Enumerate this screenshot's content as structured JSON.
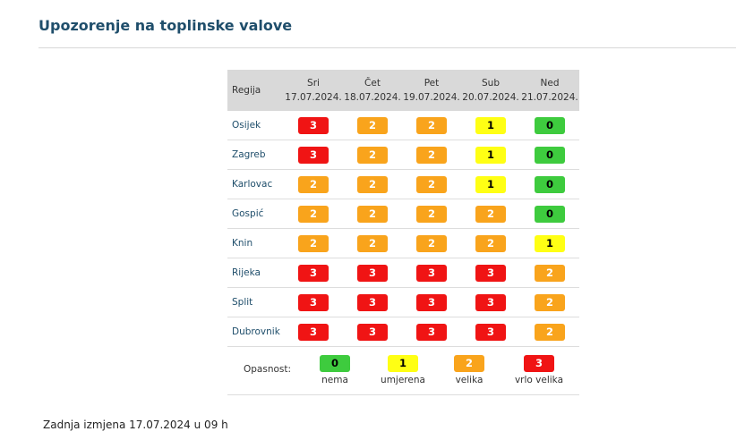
{
  "page": {
    "title": "Upozorenje na toplinske valove",
    "footer": "Zadnja izmjena 17.07.2024 u 09 h"
  },
  "table": {
    "region_header": "Regija",
    "days": [
      {
        "name": "Sri",
        "date": "17.07.2024."
      },
      {
        "name": "Čet",
        "date": "18.07.2024."
      },
      {
        "name": "Pet",
        "date": "19.07.2024."
      },
      {
        "name": "Sub",
        "date": "20.07.2024."
      },
      {
        "name": "Ned",
        "date": "21.07.2024."
      }
    ],
    "rows": [
      {
        "region": "Osijek",
        "levels": [
          "3",
          "2",
          "2",
          "1",
          "0"
        ]
      },
      {
        "region": "Zagreb",
        "levels": [
          "3",
          "2",
          "2",
          "1",
          "0"
        ]
      },
      {
        "region": "Karlovac",
        "levels": [
          "2",
          "2",
          "2",
          "1",
          "0"
        ]
      },
      {
        "region": "Gospić",
        "levels": [
          "2",
          "2",
          "2",
          "2",
          "0"
        ]
      },
      {
        "region": "Knin",
        "levels": [
          "2",
          "2",
          "2",
          "2",
          "1"
        ]
      },
      {
        "region": "Rijeka",
        "levels": [
          "3",
          "3",
          "3",
          "3",
          "2"
        ]
      },
      {
        "region": "Split",
        "levels": [
          "3",
          "3",
          "3",
          "3",
          "2"
        ]
      },
      {
        "region": "Dubrovnik",
        "levels": [
          "3",
          "3",
          "3",
          "3",
          "2"
        ]
      }
    ]
  },
  "legend": {
    "label": "Opasnost:",
    "items": [
      {
        "level": "0",
        "text": "nema"
      },
      {
        "level": "1",
        "text": "umjerena"
      },
      {
        "level": "2",
        "text": "velika"
      },
      {
        "level": "3",
        "text": "vrlo velika"
      }
    ]
  },
  "colors": {
    "level0": "#3ecb3e",
    "level1": "#ffff14",
    "level2": "#f9a41c",
    "level3": "#f01414",
    "title": "#1f4e6b",
    "header_bg": "#d9d9d9"
  }
}
